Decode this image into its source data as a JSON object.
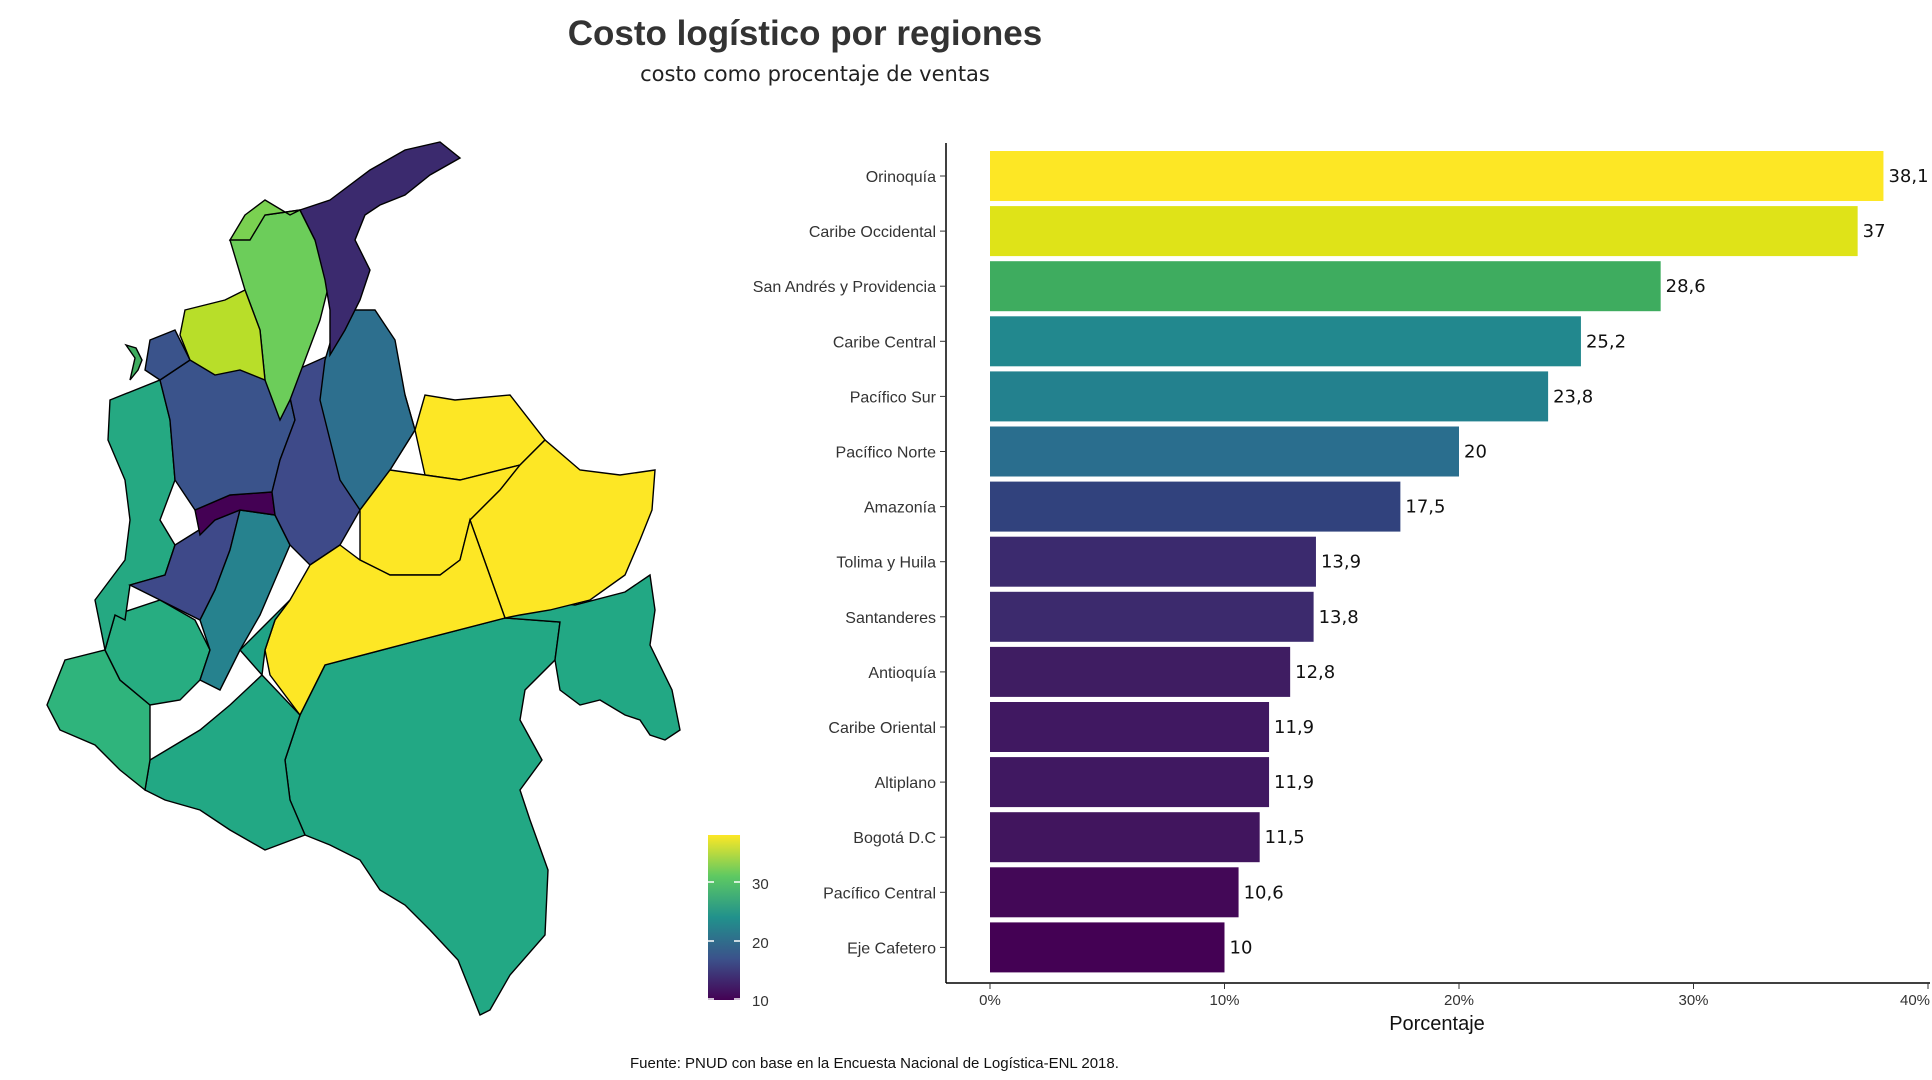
{
  "title": "Costo logístico por regiones",
  "subtitle": "costo como procentaje de ventas",
  "caption": "Fuente: PNUD con base en la Encuesta Nacional de Logística-ENL 2018.",
  "chart_data": [
    {
      "type": "bar",
      "orientation": "horizontal",
      "categories": [
        "Orinoquía",
        "Caribe Occidental",
        "San Andrés y Providencia",
        "Caribe Central",
        "Pacífico Sur",
        "Pacífico Norte",
        "Amazonía",
        "Tolima y Huila",
        "Santanderes",
        "Antioquía",
        "Caribe Oriental",
        "Altiplano",
        "Bogotá D.C",
        "Pacífico Central",
        "Eje Cafetero"
      ],
      "values": [
        38.1,
        37,
        28.6,
        25.2,
        23.8,
        20,
        17.5,
        13.9,
        13.8,
        12.8,
        11.9,
        11.9,
        11.5,
        10.6,
        10
      ],
      "value_labels": [
        "38,1",
        "37",
        "28,6",
        "25,2",
        "23,8",
        "20",
        "17,5",
        "13,9",
        "13,8",
        "12,8",
        "11,9",
        "11,9",
        "11,5",
        "10,6",
        "10"
      ],
      "colors": [
        "#fde725",
        "#dfe318",
        "#3eac5f",
        "#22888e",
        "#23818e",
        "#2a6e8e",
        "#31427d",
        "#3b2a6e",
        "#3c2a6d",
        "#3f1d62",
        "#401861",
        "#401861",
        "#41155e",
        "#430857",
        "#440154"
      ],
      "xlabel": "Porcentaje",
      "xlim": [
        0,
        40
      ],
      "xticks": [
        0,
        10,
        20,
        30,
        40
      ],
      "xtick_labels": [
        "0%",
        "10%",
        "20%",
        "30%",
        "40%"
      ]
    },
    {
      "type": "choropleth",
      "legend": {
        "ticks": [
          10,
          20,
          30
        ],
        "tick_labels": [
          "10",
          "20",
          "30"
        ],
        "range": [
          10,
          38.1
        ],
        "colors": [
          "#440154",
          "#3b528b",
          "#21918c",
          "#5ec962",
          "#fde725"
        ]
      }
    }
  ]
}
